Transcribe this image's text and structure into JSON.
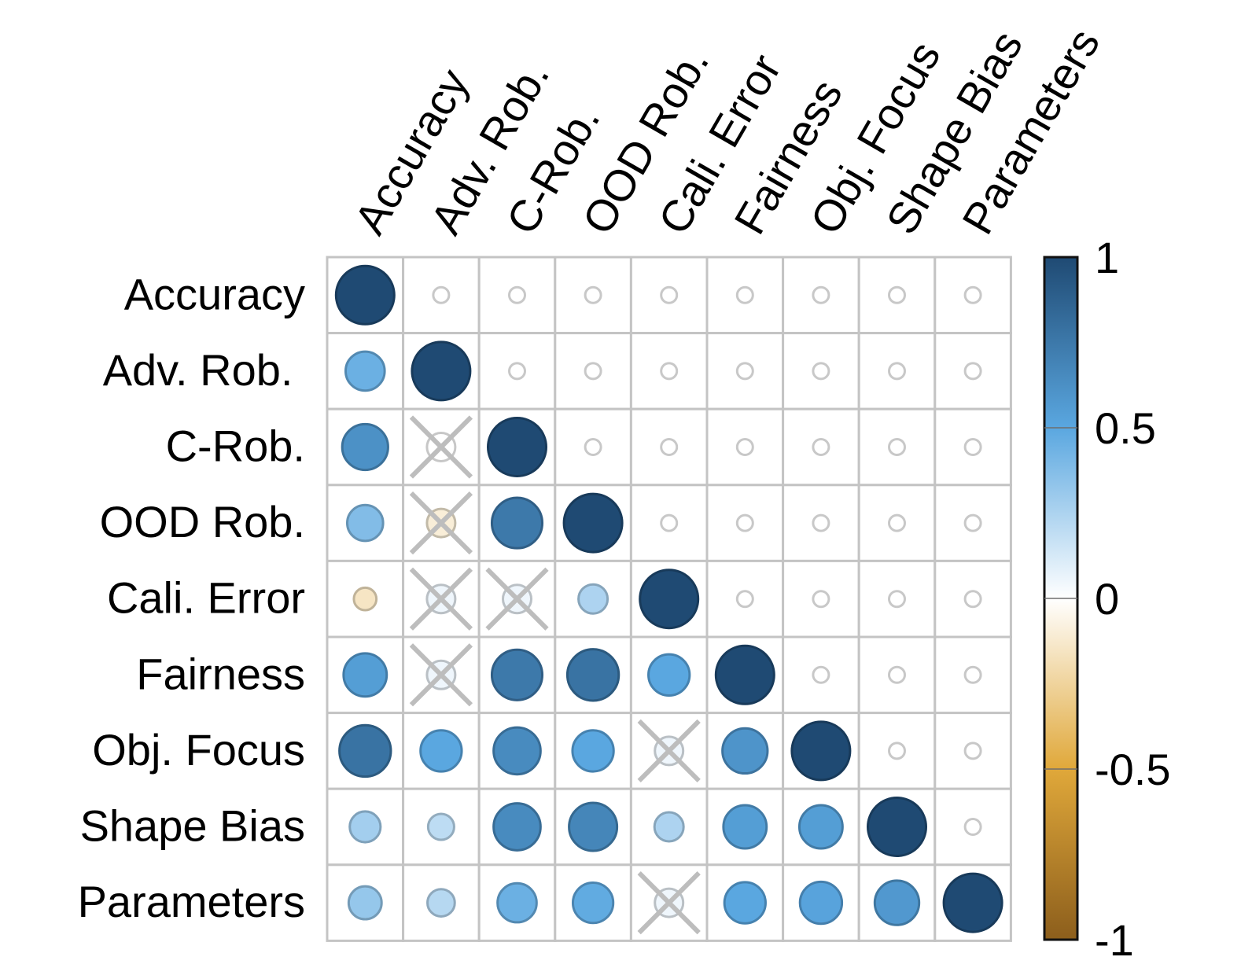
{
  "chart_data": {
    "type": "heatmap",
    "subtype": "correlogram",
    "title": "",
    "variables": [
      "Accuracy",
      "Adv. Rob.",
      "C-Rob.",
      "OOD Rob.",
      "Cali. Error",
      "Fairness",
      "Obj. Focus",
      "Shape Bias",
      "Parameters"
    ],
    "row_labels": [
      "Accuracy",
      "Adv. Rob. ",
      "C-Rob.",
      "OOD Rob.",
      "Cali. Error",
      "Fairness",
      "Obj. Focus",
      "Shape Bias",
      "Parameters"
    ],
    "col_labels": [
      "Accuracy",
      "Adv. Rob.",
      "C-Rob.",
      "OOD Rob.",
      "Cali. Error",
      "Fairness",
      "Obj. Focus",
      "Shape Bias",
      "Parameters"
    ],
    "matrix": [
      [
        1.0,
        null,
        null,
        null,
        null,
        null,
        null,
        null,
        null
      ],
      [
        0.45,
        1.0,
        null,
        null,
        null,
        null,
        null,
        null,
        null
      ],
      [
        0.62,
        0.0,
        1.0,
        null,
        null,
        null,
        null,
        null,
        null
      ],
      [
        0.38,
        -0.1,
        0.75,
        1.0,
        null,
        null,
        null,
        null,
        null
      ],
      [
        -0.15,
        0.05,
        0.05,
        0.25,
        1.0,
        null,
        null,
        null,
        null
      ],
      [
        0.55,
        0.05,
        0.75,
        0.78,
        0.5,
        1.0,
        null,
        null,
        null
      ],
      [
        0.78,
        0.5,
        0.65,
        0.5,
        0.05,
        0.6,
        1.0,
        null,
        null
      ],
      [
        0.28,
        0.2,
        0.65,
        0.68,
        0.25,
        0.55,
        0.55,
        1.0,
        null
      ],
      [
        0.32,
        0.22,
        0.45,
        0.48,
        0.05,
        0.5,
        0.52,
        0.58,
        1.0
      ]
    ],
    "not_significant": [
      [
        2,
        1
      ],
      [
        3,
        1
      ],
      [
        4,
        1
      ],
      [
        4,
        2
      ],
      [
        5,
        1
      ],
      [
        6,
        4
      ],
      [
        8,
        4
      ]
    ],
    "color_scale": {
      "min": -1,
      "max": 1,
      "ticks": [
        "1",
        "0.5",
        "0",
        "-0.5",
        "-1"
      ],
      "tick_values": [
        1,
        0.5,
        0,
        -0.5,
        -1
      ],
      "stops": [
        {
          "value": -1,
          "color": "#8c5e1c"
        },
        {
          "value": -0.5,
          "color": "#e0a83a"
        },
        {
          "value": 0,
          "color": "#ffffff"
        },
        {
          "value": 0.5,
          "color": "#5aa7e0"
        },
        {
          "value": 1,
          "color": "#1f4a73"
        }
      ]
    },
    "grid": true,
    "legend": "right"
  }
}
